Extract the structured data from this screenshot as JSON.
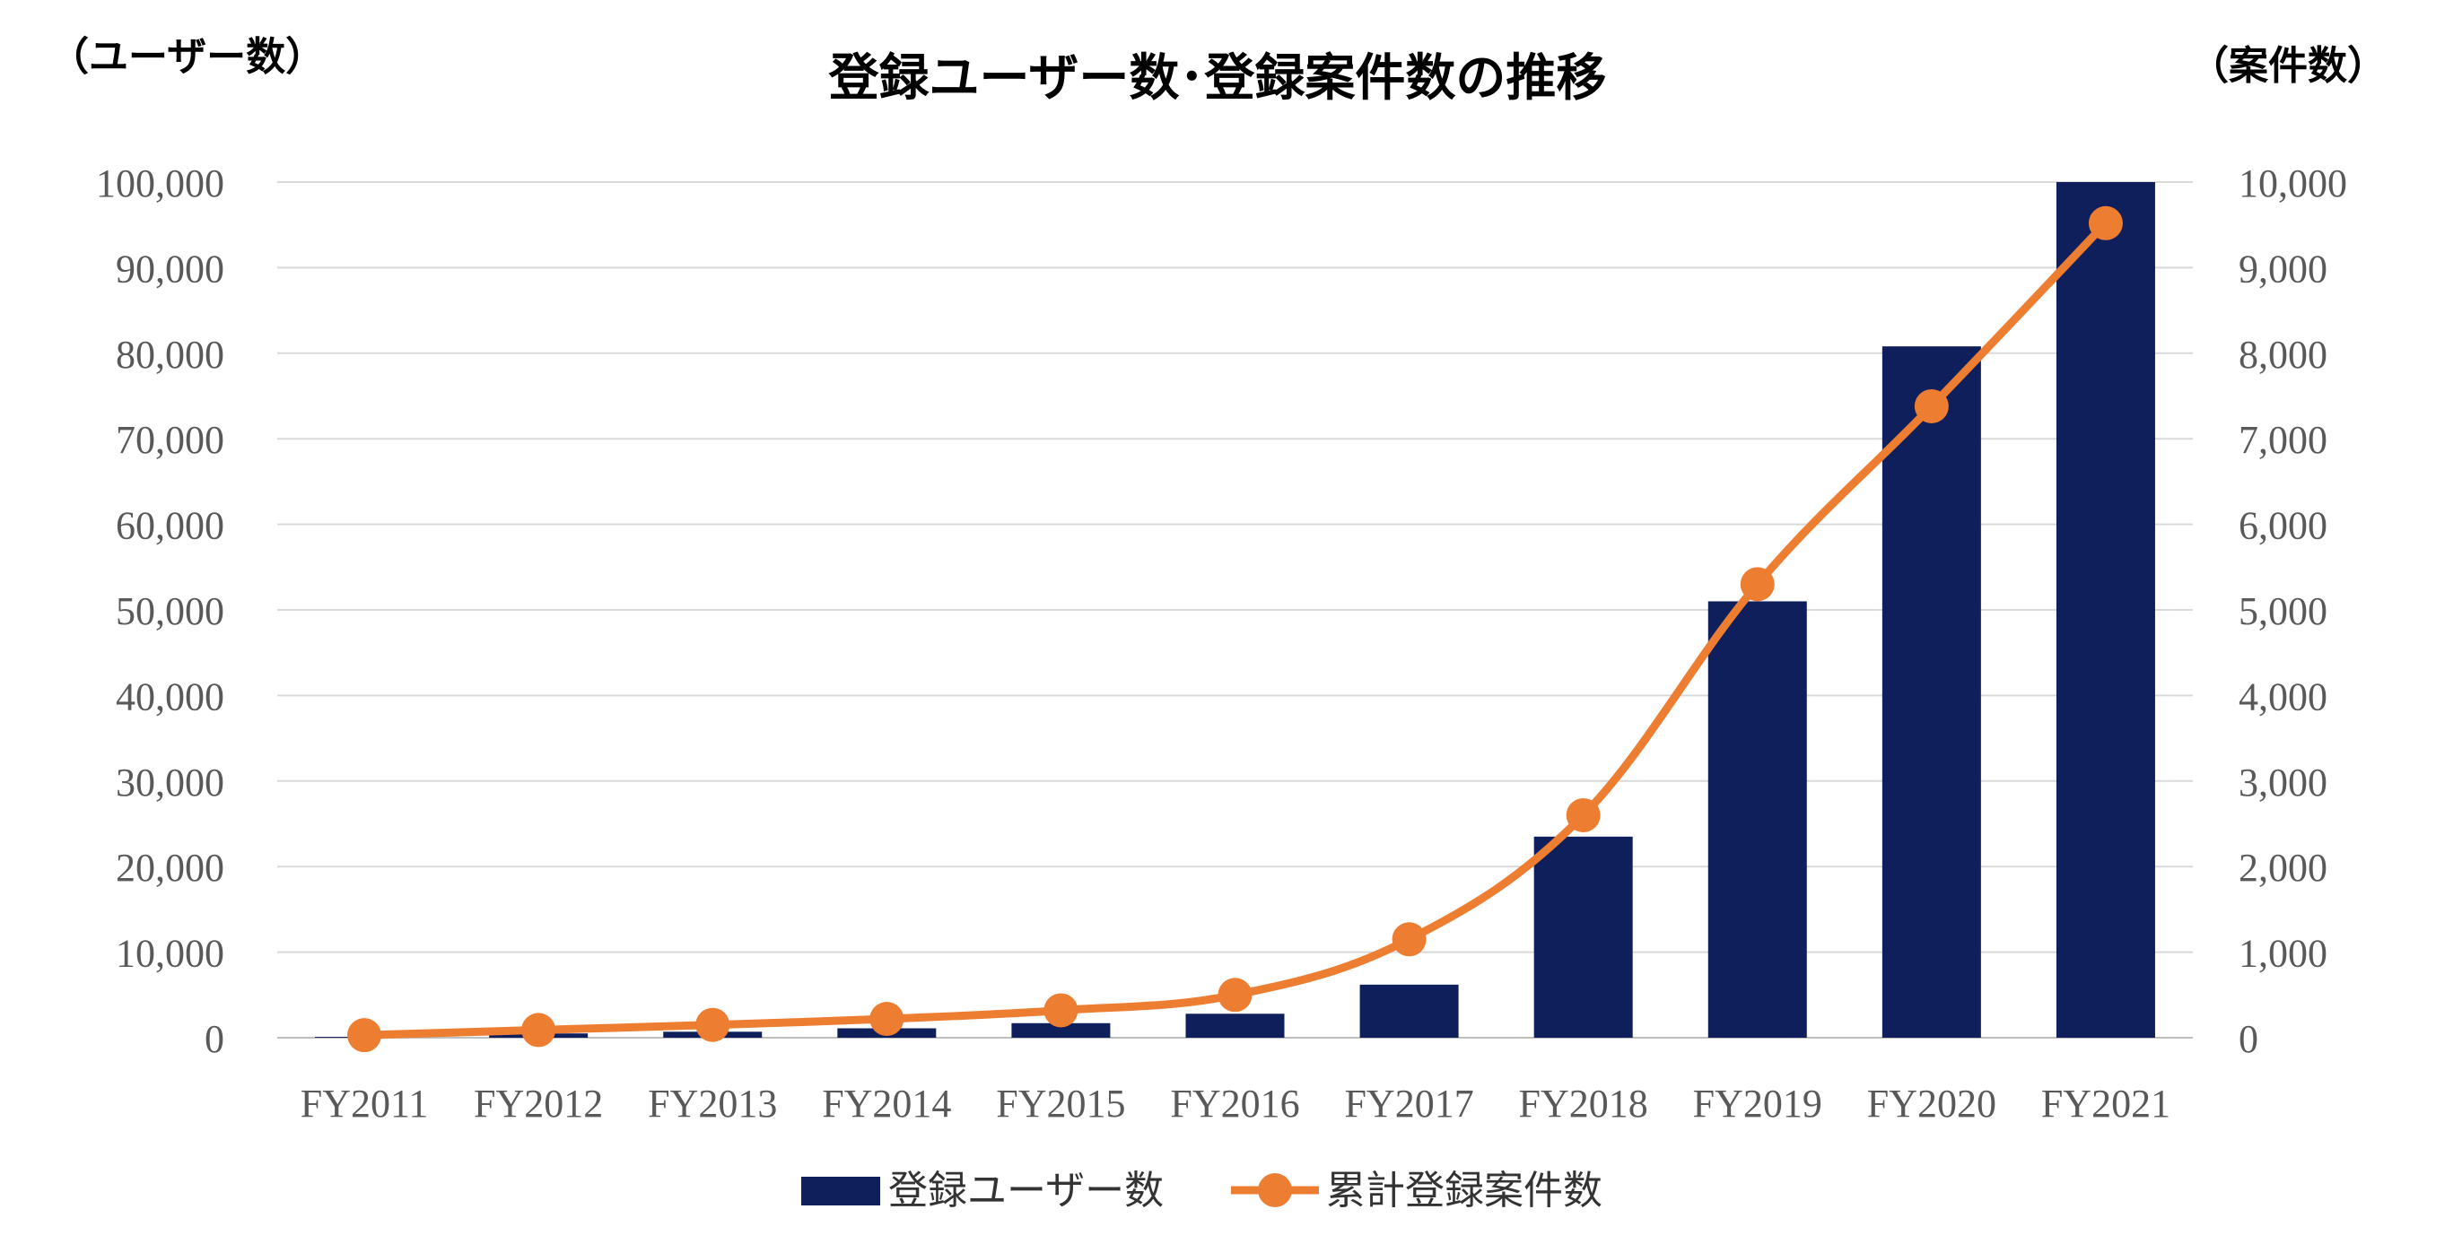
{
  "chart_data": {
    "type": "bar",
    "title": "登録ユーザー数･登録案件数の推移",
    "left_axis_label": "（ユーザー数）",
    "right_axis_label": "（案件数）",
    "categories": [
      "FY2011",
      "FY2012",
      "FY2013",
      "FY2014",
      "FY2015",
      "FY2016",
      "FY2017",
      "FY2018",
      "FY2019",
      "FY2020",
      "FY2021"
    ],
    "left_ylim": [
      0,
      100000
    ],
    "left_ticks": [
      "0",
      "10,000",
      "20,000",
      "30,000",
      "40,000",
      "50,000",
      "60,000",
      "70,000",
      "80,000",
      "90,000",
      "100,000"
    ],
    "right_ylim": [
      0,
      10000
    ],
    "right_ticks": [
      "0",
      "1,000",
      "2,000",
      "3,000",
      "4,000",
      "5,000",
      "6,000",
      "7,000",
      "8,000",
      "9,000",
      "10,000"
    ],
    "grid": true,
    "legend_position": "bottom",
    "series": [
      {
        "name": "登録ユーザー数",
        "type": "bar",
        "axis": "left",
        "color": "#0f1f5c",
        "values": [
          100,
          500,
          700,
          1100,
          1700,
          2800,
          6200,
          23500,
          51000,
          80800,
          100000
        ]
      },
      {
        "name": "累計登録案件数",
        "type": "line",
        "axis": "right",
        "color": "#ed7d31",
        "values": [
          30,
          90,
          150,
          220,
          320,
          500,
          1150,
          2600,
          5300,
          7380,
          9520
        ]
      }
    ]
  }
}
